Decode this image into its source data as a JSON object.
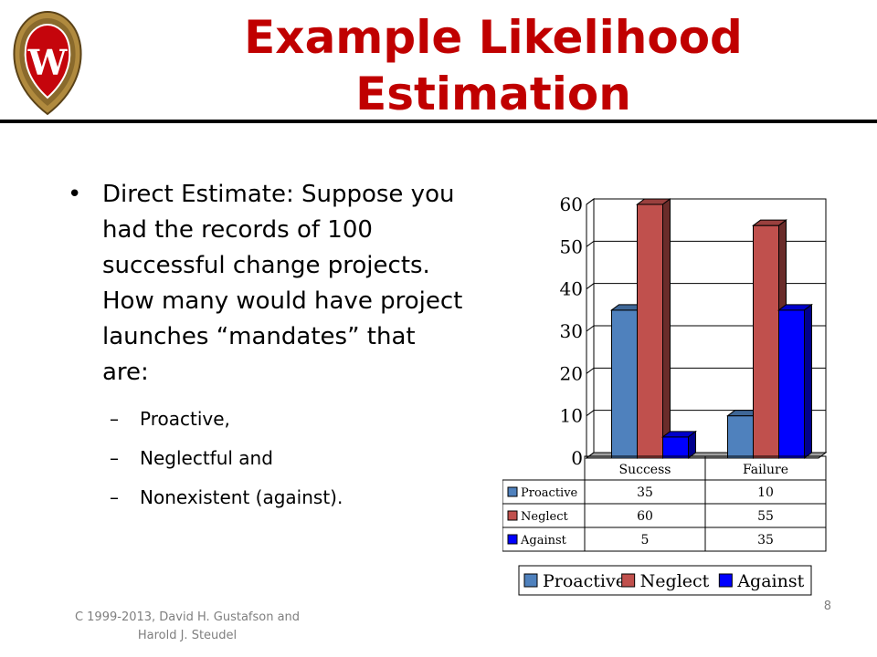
{
  "slide": {
    "title_line1": "Example Likelihood",
    "title_line2": "Estimation",
    "bullet_marker": "•",
    "bullet_text": "Direct Estimate:  Suppose you had the records of 100 successful change projects.  How many would have project launches “mandates” that are:",
    "dash_marker": "–",
    "sub_items": [
      "Proactive,",
      "Neglectful and",
      "Nonexistent (against)."
    ],
    "footer_line1": "C 1999-2013, David H. Gustafson and",
    "footer_line2": "Harold J. Steudel",
    "page_number": "8",
    "crest_letter": "W",
    "crest_icon": "university-crest-icon"
  },
  "colors": {
    "title": "#c00000",
    "crest_red": "#c5050c",
    "crest_gold": "#b08a3e",
    "proactive": "#4f81bd",
    "neglect": "#c0504d",
    "against": "#0000ff"
  },
  "chart_data": {
    "type": "bar",
    "style": "3d-clustered-column",
    "categories": [
      "Success",
      "Failure"
    ],
    "series": [
      {
        "name": "Proactive",
        "values": [
          35,
          10
        ],
        "color": "#4f81bd"
      },
      {
        "name": "Neglect",
        "values": [
          60,
          55
        ],
        "color": "#c0504d"
      },
      {
        "name": "Against",
        "values": [
          5,
          35
        ],
        "color": "#0000ff"
      }
    ],
    "ylim": [
      0,
      60
    ],
    "yticks": [
      0,
      10,
      20,
      30,
      40,
      50,
      60
    ],
    "grid": true,
    "data_table": true,
    "legend_position": "bottom"
  }
}
